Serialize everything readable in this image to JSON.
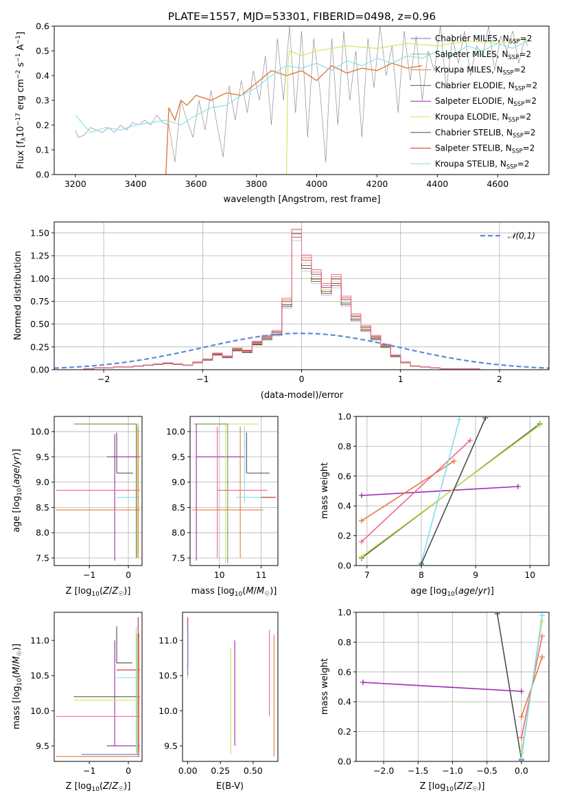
{
  "figure": {
    "title": "PLATE=1557, MJD=53301, FIBERID=0498, z=0.96",
    "colors": {
      "Chabrier MILES": "#5b78c8",
      "Salpeter MILES": "#86c06a",
      "Kroupa MILES": "#e07b39",
      "Chabrier ELODIE": "#3c6b3c",
      "Salpeter ELODIE": "#9c27b0",
      "Kroupa ELODIE": "#d4e157",
      "Chabrier STELIB": "#4d4d4d",
      "Salpeter STELIB": "#c62828",
      "Kroupa STELIB": "#80deea",
      "pink": "#f06292",
      "gaussian": "#5b8bd9"
    }
  },
  "chart_data": [
    {
      "id": "spectrum",
      "type": "line",
      "title": "PLATE=1557, MJD=53301, FIBERID=0498, z=0.96",
      "xlabel": "wavelength [Angstrom, rest frame]",
      "ylabel": "Flux [f_λ 10^-17 erg cm^-2 s^-1 A^-1]",
      "xlim": [
        3130,
        4770
      ],
      "ylim": [
        0,
        0.6
      ],
      "xticks": [
        3200,
        3400,
        3600,
        3800,
        4000,
        4200,
        4400,
        4600
      ],
      "yticks": [
        0.0,
        0.1,
        0.2,
        0.3,
        0.4,
        0.5,
        0.6
      ],
      "grid": false,
      "legend_position": "top-right",
      "legend": [
        "Chabrier MILES, N_SSP=2",
        "Salpeter MILES, N_SSP=2",
        "Kroupa MILES, N_SSP=2",
        "Chabrier ELODIE, N_SSP=2",
        "Salpeter ELODIE, N_SSP=2",
        "Kroupa ELODIE, N_SSP=2",
        "Chabrier STELIB, N_SSP=2",
        "Salpeter STELIB, N_SSP=2",
        "Kroupa STELIB, N_SSP=2"
      ],
      "data_series": {
        "name": "data",
        "x": [
          3200,
          3210,
          3230,
          3250,
          3270,
          3290,
          3310,
          3330,
          3350,
          3370,
          3390,
          3410,
          3430,
          3450,
          3470,
          3490,
          3510,
          3530,
          3550,
          3570,
          3590,
          3610,
          3630,
          3650,
          3670,
          3690,
          3710,
          3730,
          3750,
          3770,
          3790,
          3810,
          3830,
          3850,
          3870,
          3890,
          3910,
          3930,
          3950,
          3970,
          3990,
          4010,
          4030,
          4050,
          4070,
          4090,
          4110,
          4130,
          4150,
          4170,
          4190,
          4210,
          4230,
          4250,
          4270,
          4290,
          4310,
          4330,
          4350,
          4370,
          4390,
          4410,
          4430,
          4450,
          4470,
          4490,
          4510,
          4530,
          4550,
          4570,
          4590,
          4610,
          4630,
          4650,
          4670,
          4690,
          4700
        ],
        "y": [
          0.18,
          0.15,
          0.16,
          0.19,
          0.18,
          0.17,
          0.19,
          0.17,
          0.2,
          0.18,
          0.21,
          0.2,
          0.22,
          0.2,
          0.24,
          0.21,
          0.2,
          0.05,
          0.3,
          0.22,
          0.15,
          0.3,
          0.18,
          0.34,
          0.2,
          0.07,
          0.36,
          0.22,
          0.38,
          0.25,
          0.42,
          0.3,
          0.48,
          0.2,
          0.55,
          0.3,
          0.6,
          0.25,
          0.58,
          0.15,
          0.55,
          0.35,
          0.05,
          0.55,
          0.2,
          0.58,
          0.3,
          0.5,
          0.15,
          0.55,
          0.35,
          0.6,
          0.4,
          0.52,
          0.25,
          0.58,
          0.38,
          0.56,
          0.3,
          0.5,
          0.42,
          0.6,
          0.35,
          0.55,
          0.45,
          0.58,
          0.4,
          0.52,
          0.48,
          0.6,
          0.42,
          0.56,
          0.5,
          0.58,
          0.45,
          0.55,
          0.52
        ]
      },
      "model_series": [
        {
          "name": "Kroupa MILES, N_SSP=2",
          "x": [
            3500,
            3510,
            3530,
            3550,
            3570,
            3600,
            3650,
            3700,
            3750,
            3800,
            3850,
            3900,
            3950,
            4000,
            4050,
            4100,
            4150,
            4200,
            4250,
            4300,
            4350
          ],
          "y": [
            0.0,
            0.27,
            0.22,
            0.3,
            0.28,
            0.32,
            0.3,
            0.33,
            0.32,
            0.37,
            0.42,
            0.4,
            0.42,
            0.38,
            0.44,
            0.41,
            0.43,
            0.42,
            0.45,
            0.43,
            0.44
          ]
        },
        {
          "name": "Kroupa ELODIE, N_SSP=2",
          "x": [
            3900,
            3905,
            3910,
            3950,
            4000,
            4100,
            4200,
            4300,
            4400,
            4500,
            4600,
            4700
          ],
          "y": [
            0.0,
            0.45,
            0.5,
            0.48,
            0.5,
            0.52,
            0.51,
            0.53,
            0.52,
            0.54,
            0.53,
            0.55
          ]
        },
        {
          "name": "Kroupa STELIB, N_SSP=2",
          "x": [
            3200,
            3250,
            3300,
            3350,
            3400,
            3450,
            3500,
            3550,
            3600,
            3650,
            3700,
            3750,
            3800,
            3850,
            3900,
            3950,
            4000,
            4050,
            4100,
            4150,
            4200,
            4250,
            4300,
            4350,
            4400,
            4450,
            4500,
            4550,
            4600,
            4650,
            4700
          ],
          "y": [
            0.24,
            0.17,
            0.19,
            0.18,
            0.2,
            0.21,
            0.22,
            0.2,
            0.24,
            0.27,
            0.28,
            0.32,
            0.35,
            0.4,
            0.44,
            0.43,
            0.45,
            0.42,
            0.46,
            0.44,
            0.47,
            0.45,
            0.48,
            0.47,
            0.5,
            0.48,
            0.52,
            0.5,
            0.53,
            0.51,
            0.54
          ]
        }
      ]
    },
    {
      "id": "residuals",
      "type": "line",
      "xlabel": "(data-model)/error",
      "ylabel": "Normed distribution",
      "xlim": [
        -2.5,
        2.5
      ],
      "ylim": [
        0,
        1.62
      ],
      "xticks": [
        -2,
        -1,
        0,
        1,
        2
      ],
      "yticks": [
        0.0,
        0.25,
        0.5,
        0.75,
        1.0,
        1.25,
        1.5
      ],
      "grid": true,
      "legend_position": "top-right",
      "legend": [
        "𝒩(0,1)"
      ],
      "gaussian": {
        "mean": 0,
        "sigma": 1
      },
      "histogram": {
        "bin_edges": [
          -2.2,
          -2.1,
          -2.0,
          -1.9,
          -1.8,
          -1.7,
          -1.6,
          -1.5,
          -1.4,
          -1.3,
          -1.2,
          -1.1,
          -1.0,
          -0.9,
          -0.8,
          -0.7,
          -0.6,
          -0.5,
          -0.4,
          -0.3,
          -0.2,
          -0.1,
          0.0,
          0.1,
          0.2,
          0.3,
          0.4,
          0.5,
          0.6,
          0.7,
          0.8,
          0.9,
          1.0,
          1.1,
          1.2,
          1.3,
          1.4,
          1.5,
          1.6,
          1.7,
          1.8,
          1.9,
          2.0
        ],
        "values": [
          0.01,
          0.02,
          0.02,
          0.03,
          0.03,
          0.04,
          0.05,
          0.06,
          0.07,
          0.06,
          0.05,
          0.08,
          0.11,
          0.17,
          0.14,
          0.22,
          0.2,
          0.29,
          0.35,
          0.4,
          0.73,
          1.53,
          1.17,
          1.02,
          0.88,
          0.97,
          0.75,
          0.57,
          0.45,
          0.35,
          0.26,
          0.15,
          0.08,
          0.04,
          0.03,
          0.02,
          0.01,
          0.01,
          0.01,
          0.01,
          0.0,
          0.0
        ]
      }
    },
    {
      "id": "age_vs_Z",
      "type": "scatter",
      "xlabel": "Z [log10(Z/Z☉)]",
      "ylabel": "age  [log10(age/yr)]",
      "xlim": [
        -1.9,
        0.35
      ],
      "ylim": [
        7.35,
        10.3
      ],
      "xticks": [
        -1,
        0
      ],
      "yticks": [
        7.5,
        8.0,
        8.5,
        9.0,
        9.5,
        10.0
      ],
      "grid": true
    },
    {
      "id": "age_vs_mass",
      "type": "scatter",
      "xlabel": "mass [log10(M/M☉)]",
      "ylabel": "",
      "xlim": [
        9.3,
        11.4
      ],
      "ylim": [
        7.35,
        10.3
      ],
      "xticks": [
        10,
        11
      ],
      "yticks": [
        7.5,
        8.0,
        8.5,
        9.0,
        9.5,
        10.0
      ],
      "grid": true
    },
    {
      "id": "weight_vs_age",
      "type": "line",
      "xlabel": "age  [log10(age/yr)]",
      "ylabel": "mass weight",
      "xlim": [
        6.8,
        10.35
      ],
      "ylim": [
        0,
        1.0
      ],
      "xticks": [
        7,
        8,
        9,
        10
      ],
      "yticks": [
        0.0,
        0.2,
        0.4,
        0.6,
        0.8,
        1.0
      ],
      "grid": true,
      "segments": [
        {
          "color_key": "Salpeter ELODIE",
          "x": [
            6.9,
            9.78
          ],
          "y": [
            0.47,
            0.53
          ]
        },
        {
          "color_key": "Kroupa MILES",
          "x": [
            6.9,
            8.6
          ],
          "y": [
            0.3,
            0.7
          ]
        },
        {
          "color_key": "pink",
          "x": [
            6.9,
            8.9
          ],
          "y": [
            0.16,
            0.84
          ]
        },
        {
          "color_key": "Chabrier ELODIE",
          "x": [
            6.9,
            10.18
          ],
          "y": [
            0.05,
            0.95
          ]
        },
        {
          "color_key": "Kroupa ELODIE",
          "x": [
            6.9,
            10.18
          ],
          "y": [
            0.06,
            0.94
          ]
        },
        {
          "color_key": "Kroupa STELIB",
          "x": [
            8.0,
            8.7
          ],
          "y": [
            0.02,
            0.98
          ]
        },
        {
          "color_key": "Chabrier STELIB",
          "x": [
            8.0,
            9.18
          ],
          "y": [
            0.01,
            0.99
          ]
        }
      ]
    },
    {
      "id": "mass_vs_Z",
      "type": "scatter",
      "xlabel": "Z [log10(Z/Z☉)]",
      "ylabel": "mass [log10(M/M☉)]",
      "xlim": [
        -1.9,
        0.35
      ],
      "ylim": [
        9.28,
        11.4
      ],
      "xticks": [
        -1,
        0
      ],
      "yticks": [
        9.5,
        10.0,
        10.5,
        11.0
      ],
      "grid": false
    },
    {
      "id": "mass_vs_ebv",
      "type": "scatter",
      "xlabel": "E(B-V)",
      "ylabel": "",
      "xlim": [
        -0.04,
        0.69
      ],
      "ylim": [
        9.28,
        11.4
      ],
      "xticks": [
        0.0,
        0.25,
        0.5
      ],
      "yticks": [
        9.5,
        10.0,
        10.5,
        11.0
      ],
      "grid": false
    },
    {
      "id": "weight_vs_Z",
      "type": "line",
      "xlabel": "Z [log10(Z/Z☉)]",
      "ylabel": "mass weight",
      "xlim": [
        -2.4,
        0.4
      ],
      "ylim": [
        0,
        1.0
      ],
      "xticks": [
        -2.0,
        -1.5,
        -1.0,
        -0.5,
        0.0
      ],
      "yticks": [
        0.0,
        0.2,
        0.4,
        0.6,
        0.8,
        1.0
      ],
      "grid": true,
      "segments": [
        {
          "color_key": "Salpeter ELODIE",
          "x": [
            -2.3,
            0.0
          ],
          "y": [
            0.53,
            0.47
          ]
        },
        {
          "color_key": "Chabrier STELIB",
          "x": [
            -0.35,
            0.0
          ],
          "y": [
            0.99,
            0.01
          ]
        },
        {
          "color_key": "Kroupa MILES",
          "x": [
            0.0,
            0.3
          ],
          "y": [
            0.3,
            0.7
          ]
        },
        {
          "color_key": "pink",
          "x": [
            0.0,
            0.3
          ],
          "y": [
            0.16,
            0.84
          ]
        },
        {
          "color_key": "Kroupa ELODIE",
          "x": [
            0.0,
            0.3
          ],
          "y": [
            0.06,
            0.94
          ]
        },
        {
          "color_key": "Kroupa STELIB",
          "x": [
            0.0,
            0.3
          ],
          "y": [
            0.02,
            0.98
          ]
        }
      ]
    }
  ]
}
